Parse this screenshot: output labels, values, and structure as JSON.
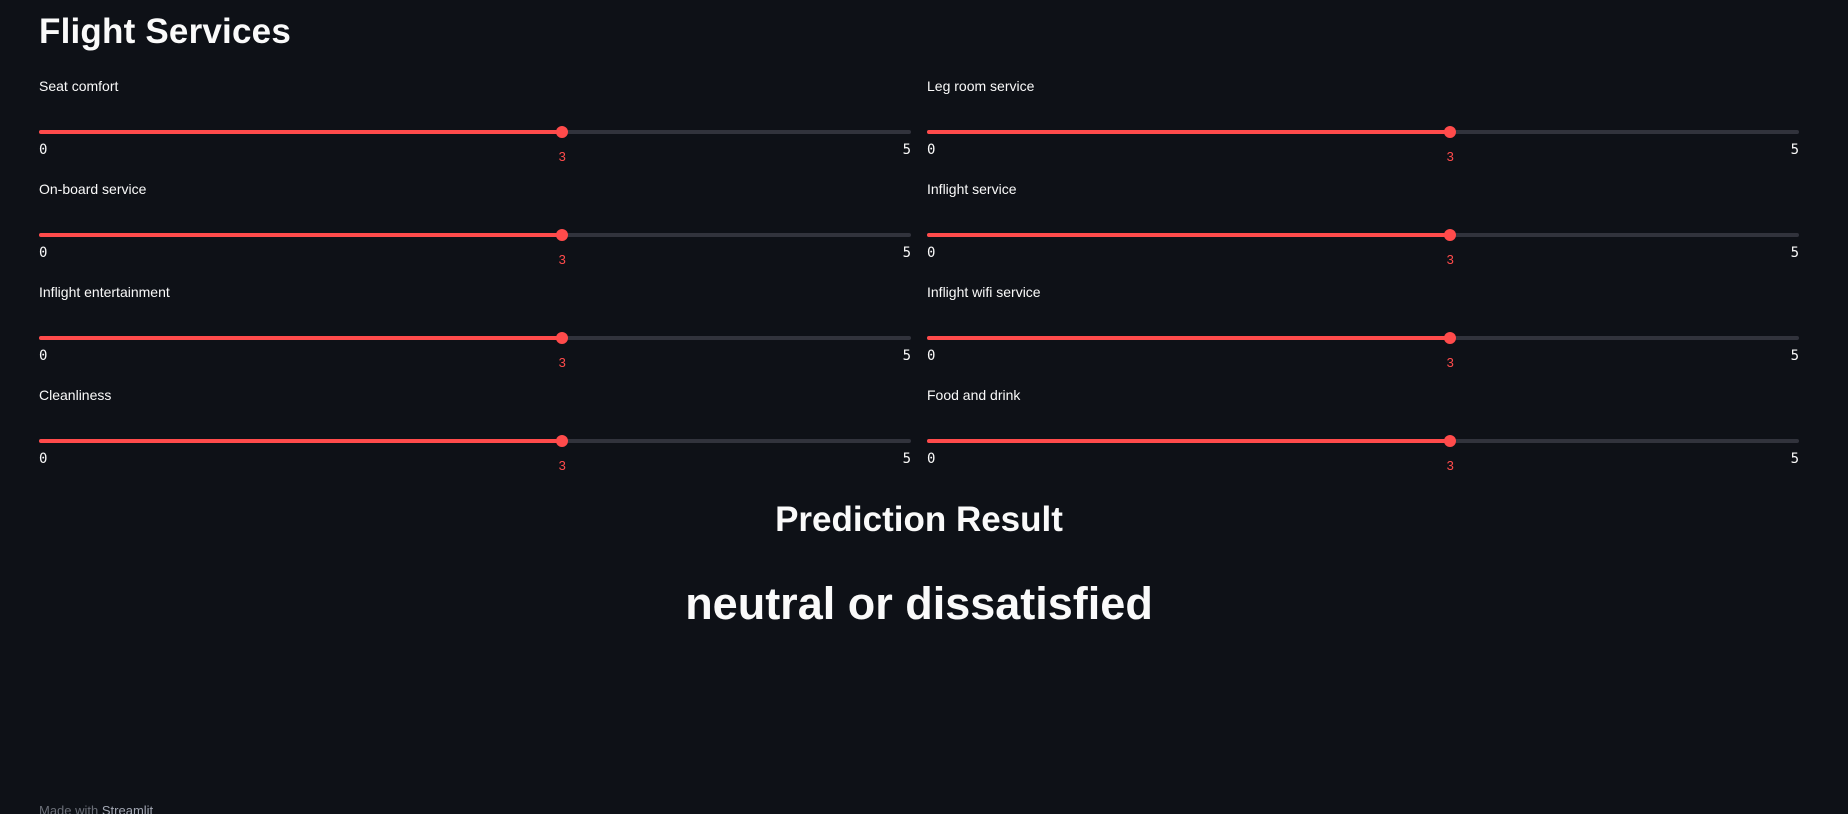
{
  "section": {
    "title": "Flight Services"
  },
  "sliders": [
    {
      "label": "Seat comfort",
      "value": 3,
      "min": 0,
      "max": 5
    },
    {
      "label": "Leg room service",
      "value": 3,
      "min": 0,
      "max": 5
    },
    {
      "label": "On-board service",
      "value": 3,
      "min": 0,
      "max": 5
    },
    {
      "label": "Inflight service",
      "value": 3,
      "min": 0,
      "max": 5
    },
    {
      "label": "Inflight entertainment",
      "value": 3,
      "min": 0,
      "max": 5
    },
    {
      "label": "Inflight wifi service",
      "value": 3,
      "min": 0,
      "max": 5
    },
    {
      "label": "Cleanliness",
      "value": 3,
      "min": 0,
      "max": 5
    },
    {
      "label": "Food and drink",
      "value": 3,
      "min": 0,
      "max": 5
    }
  ],
  "result": {
    "heading": "Prediction Result",
    "value": "neutral or dissatisfied"
  },
  "footer": {
    "prefix": "Made with",
    "brand": "Streamlit"
  },
  "colors": {
    "accent": "#ff4b4b",
    "background": "#0e1117",
    "track": "#31333c"
  }
}
